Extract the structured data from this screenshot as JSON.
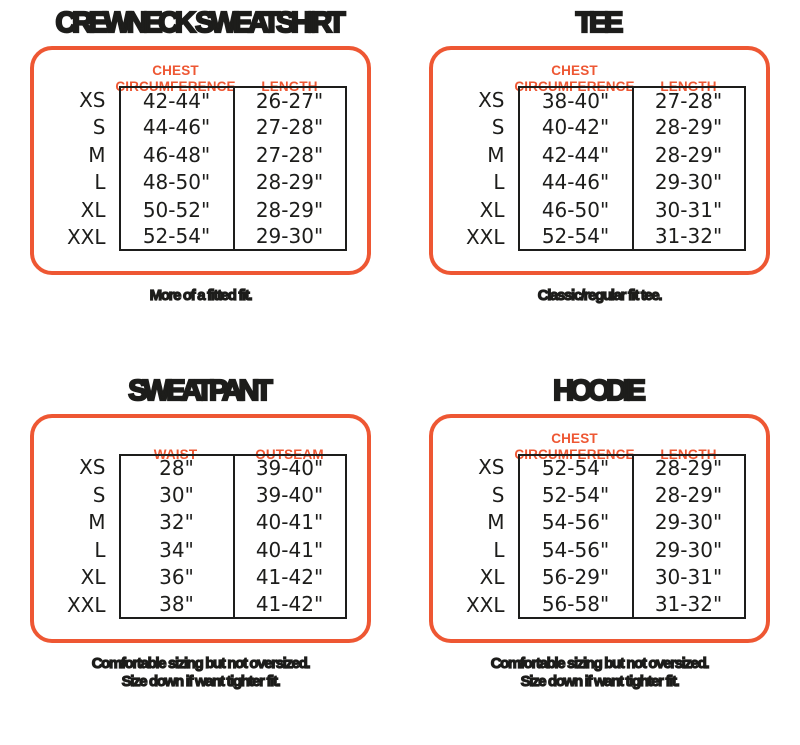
{
  "colors": {
    "accent": "#EE5733",
    "ink": "#1D1D1B",
    "background": "#FFFFFF"
  },
  "chart_data": [
    {
      "type": "table",
      "title": "CREWNECK SWEATSHIRT",
      "columns": [
        "",
        "CHEST\nCIRCUMFERENCE",
        "LENGTH"
      ],
      "rows": [
        [
          "XS",
          "42-44\"",
          "26-27\""
        ],
        [
          "S",
          "44-46\"",
          "27-28\""
        ],
        [
          "M",
          "46-48\"",
          "27-28\""
        ],
        [
          "L",
          "48-50\"",
          "28-29\""
        ],
        [
          "XL",
          "50-52\"",
          "28-29\""
        ],
        [
          "XXL",
          "52-54\"",
          "29-30\""
        ]
      ],
      "caption": "More of a fitted fit."
    },
    {
      "type": "table",
      "title": "TEE",
      "columns": [
        "",
        "CHEST\nCIRCUMFERENCE",
        "LENGTH"
      ],
      "rows": [
        [
          "XS",
          "38-40\"",
          "27-28\""
        ],
        [
          "S",
          "40-42\"",
          "28-29\""
        ],
        [
          "M",
          "42-44\"",
          "28-29\""
        ],
        [
          "L",
          "44-46\"",
          "29-30\""
        ],
        [
          "XL",
          "46-50\"",
          "30-31\""
        ],
        [
          "XXL",
          "52-54\"",
          "31-32\""
        ]
      ],
      "caption": "Classic/regular fit tee."
    },
    {
      "type": "table",
      "title": "SWEATPANT",
      "columns": [
        "",
        "WAIST",
        "OUTSEAM"
      ],
      "rows": [
        [
          "XS",
          "28\"",
          "39-40\""
        ],
        [
          "S",
          "30\"",
          "39-40\""
        ],
        [
          "M",
          "32\"",
          "40-41\""
        ],
        [
          "L",
          "34\"",
          "40-41\""
        ],
        [
          "XL",
          "36\"",
          "41-42\""
        ],
        [
          "XXL",
          "38\"",
          "41-42\""
        ]
      ],
      "caption": "Comfortable sizing but not oversized.\nSize down if want tighter fit."
    },
    {
      "type": "table",
      "title": "HOODIE",
      "columns": [
        "",
        "CHEST\nCIRCUMFERENCE",
        "LENGTH"
      ],
      "rows": [
        [
          "XS",
          "52-54\"",
          "28-29\""
        ],
        [
          "S",
          "52-54\"",
          "28-29\""
        ],
        [
          "M",
          "54-56\"",
          "29-30\""
        ],
        [
          "L",
          "54-56\"",
          "29-30\""
        ],
        [
          "XL",
          "56-29\"",
          "30-31\""
        ],
        [
          "XXL",
          "56-58\"",
          "31-32\""
        ]
      ],
      "caption": "Comfortable sizing but not oversized.\nSize down if want tighter fit."
    }
  ]
}
